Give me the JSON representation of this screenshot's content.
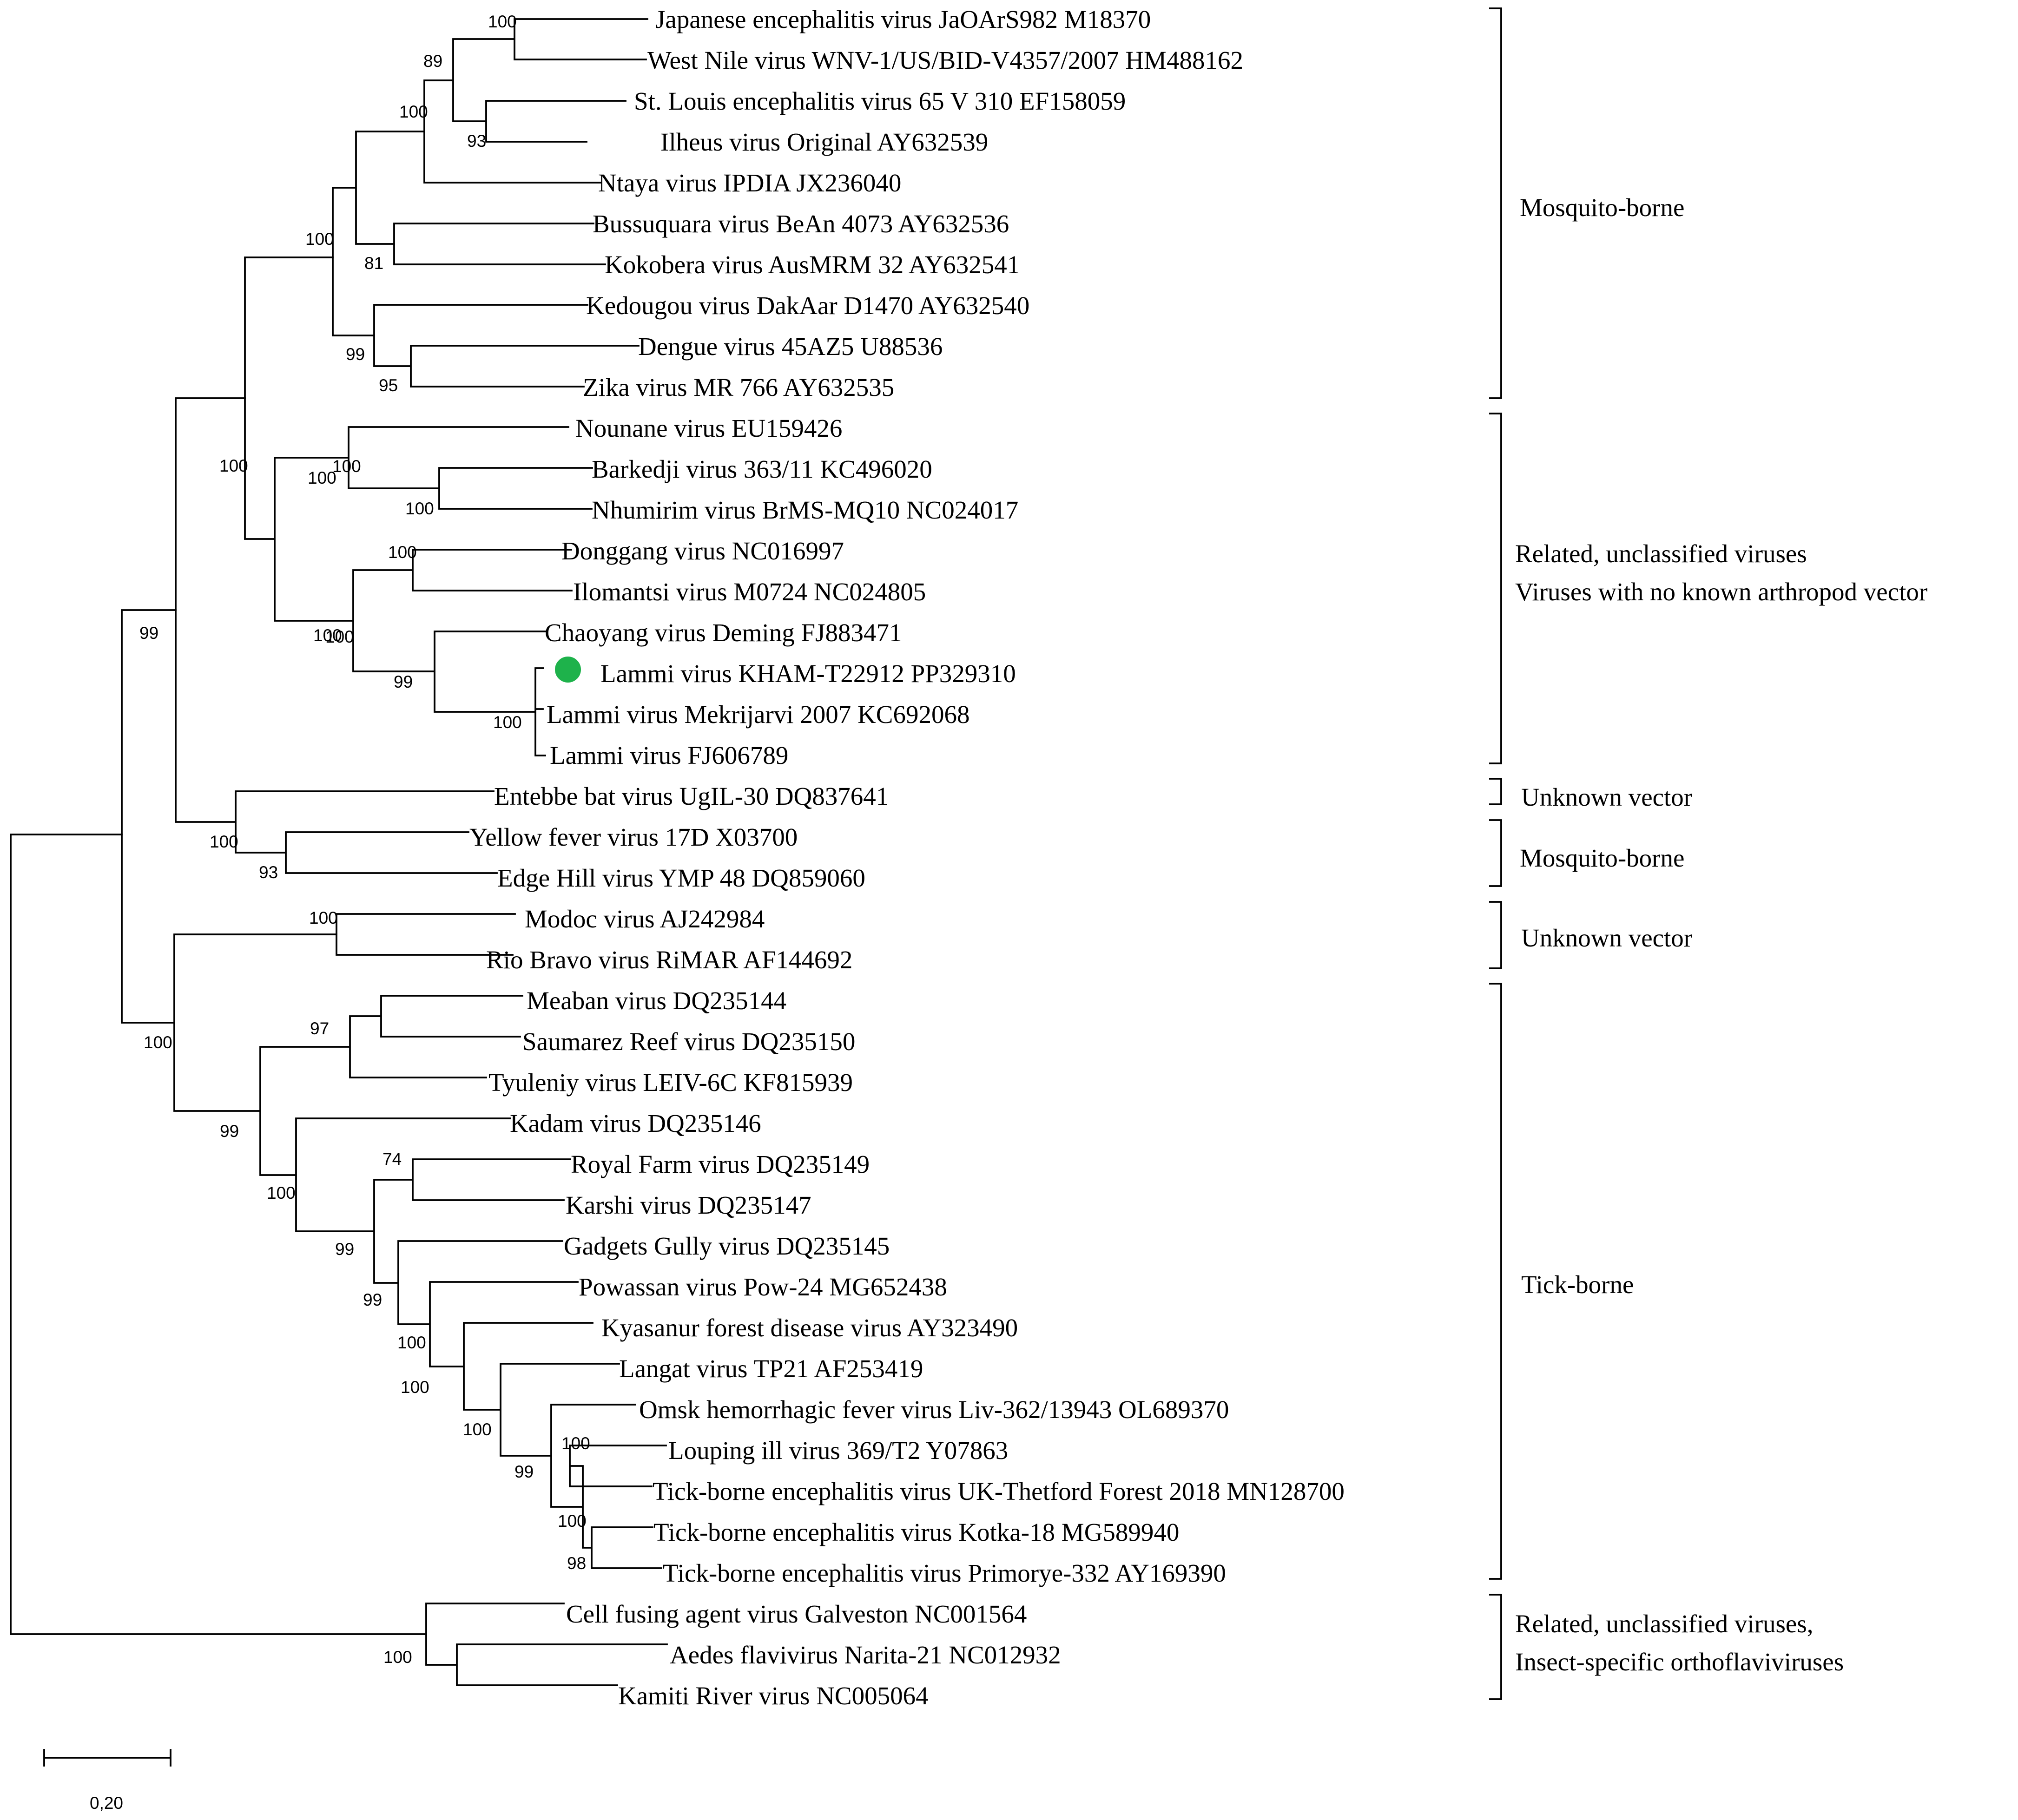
{
  "figure": {
    "type": "phylogenetic-tree",
    "highlight_color": "#1eb24b",
    "scale_bar_label": "0,20"
  },
  "taxa": [
    "Japanese encephalitis virus JaOArS982 M18370",
    "West Nile virus WNV-1/US/BID-V4357/2007 HM488162",
    "St. Louis encephalitis virus 65 V 310 EF158059",
    "Ilheus virus Original AY632539",
    "Ntaya virus IPDIA JX236040",
    "Bussuquara virus BeAn 4073 AY632536",
    "Kokobera virus AusMRM 32 AY632541",
    "Kedougou virus DakAar D1470 AY632540",
    "Dengue virus 45AZ5 U88536",
    "Zika virus MR 766 AY632535",
    "Nounane virus EU159426",
    "Barkedji virus 363/11 KC496020",
    "Nhumirim virus BrMS-MQ10 NC024017",
    "Donggang virus NC016997",
    "Ilomantsi virus M0724 NC024805",
    "Chaoyang virus Deming FJ883471",
    "Lammi virus KHAM-T22912 PP329310",
    "Lammi virus Mekrijarvi 2007 KC692068",
    "Lammi virus FJ606789",
    "Entebbe bat virus UgIL-30 DQ837641",
    "Yellow fever virus 17D X03700",
    "Edge Hill virus YMP 48 DQ859060",
    "Modoc virus AJ242984",
    "Rio Bravo virus RiMAR AF144692",
    "Meaban virus DQ235144",
    "Saumarez Reef virus DQ235150",
    "Tyuleniy virus LEIV-6C KF815939",
    "Kadam virus DQ235146",
    "Royal Farm virus DQ235149",
    "Karshi virus DQ235147",
    "Gadgets Gully virus DQ235145",
    "Powassan virus Pow-24 MG652438",
    "Kyasanur forest disease virus AY323490",
    "Langat virus TP21 AF253419",
    "Omsk hemorrhagic fever virus Liv-362/13943 OL689370",
    "Louping ill virus 369/T2 Y07863",
    "Tick-borne encephalitis virus UK-Thetford Forest 2018 MN128700",
    "Tick-borne encephalitis virus Kotka-18 MG589940",
    "Tick-borne encephalitis virus Primorye-332 AY169390",
    "Cell fusing agent virus Galveston NC001564",
    "Aedes flavivirus Narita-21 NC012932",
    "Kamiti River virus NC005064"
  ],
  "highlighted_taxon": "Lammi virus KHAM-T22912 PP329310",
  "bootstrap": [
    "100",
    "89",
    "93",
    "100",
    "100",
    "81",
    "99",
    "95",
    "100",
    "100",
    "100",
    "100",
    "100",
    "100",
    "100",
    "99",
    "100",
    "99",
    "100",
    "93",
    "100",
    "100",
    "97",
    "99",
    "100",
    "74",
    "99",
    "99",
    "100",
    "100",
    "100",
    "100",
    "99",
    "100",
    "98",
    "100"
  ],
  "groups": [
    {
      "lines": [
        "Mosquito-borne"
      ]
    },
    {
      "lines": [
        "Related, unclassified viruses",
        "Viruses with no known arthropod vector"
      ]
    },
    {
      "lines": [
        "Unknown vector"
      ]
    },
    {
      "lines": [
        "Mosquito-borne"
      ]
    },
    {
      "lines": [
        "Unknown vector"
      ]
    },
    {
      "lines": [
        "Tick-borne"
      ]
    },
    {
      "lines": [
        "Related, unclassified viruses,",
        "Insect-specific orthoflaviviruses"
      ]
    }
  ]
}
